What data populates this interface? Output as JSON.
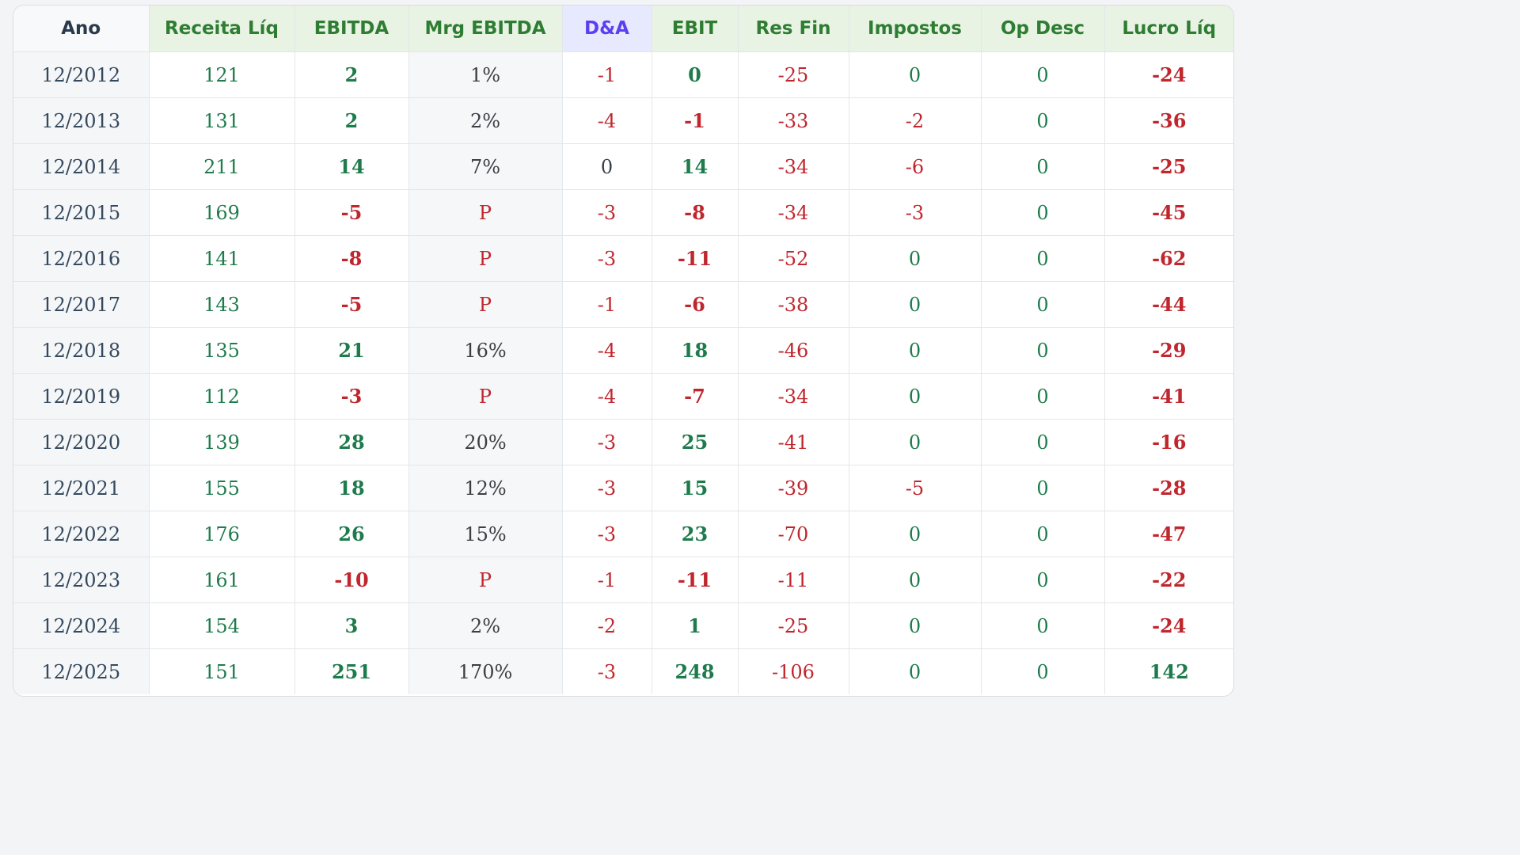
{
  "headers": {
    "ano": "Ano",
    "receita": "Receita Líq",
    "ebitda": "EBITDA",
    "mrg": "Mrg EBITDA",
    "da": "D&A",
    "ebit": "EBIT",
    "resfin": "Res Fin",
    "impostos": "Impostos",
    "opdesc": "Op Desc",
    "lucro": "Lucro Líq"
  },
  "colors": {
    "positive": "#1e7b4c",
    "negative": "#c0262d",
    "header_green": "#2e7d32",
    "header_da": "#5b3ff0"
  },
  "rows": [
    {
      "ano": "12/2012",
      "receita": "121",
      "ebitda": "2",
      "mrg": "1%",
      "da": "-1",
      "ebit": "0",
      "resfin": "-25",
      "impostos": "0",
      "opdesc": "0",
      "lucro": "-24"
    },
    {
      "ano": "12/2013",
      "receita": "131",
      "ebitda": "2",
      "mrg": "2%",
      "da": "-4",
      "ebit": "-1",
      "resfin": "-33",
      "impostos": "-2",
      "opdesc": "0",
      "lucro": "-36"
    },
    {
      "ano": "12/2014",
      "receita": "211",
      "ebitda": "14",
      "mrg": "7%",
      "da": "0",
      "ebit": "14",
      "resfin": "-34",
      "impostos": "-6",
      "opdesc": "0",
      "lucro": "-25"
    },
    {
      "ano": "12/2015",
      "receita": "169",
      "ebitda": "-5",
      "mrg": "P",
      "da": "-3",
      "ebit": "-8",
      "resfin": "-34",
      "impostos": "-3",
      "opdesc": "0",
      "lucro": "-45"
    },
    {
      "ano": "12/2016",
      "receita": "141",
      "ebitda": "-8",
      "mrg": "P",
      "da": "-3",
      "ebit": "-11",
      "resfin": "-52",
      "impostos": "0",
      "opdesc": "0",
      "lucro": "-62"
    },
    {
      "ano": "12/2017",
      "receita": "143",
      "ebitda": "-5",
      "mrg": "P",
      "da": "-1",
      "ebit": "-6",
      "resfin": "-38",
      "impostos": "0",
      "opdesc": "0",
      "lucro": "-44"
    },
    {
      "ano": "12/2018",
      "receita": "135",
      "ebitda": "21",
      "mrg": "16%",
      "da": "-4",
      "ebit": "18",
      "resfin": "-46",
      "impostos": "0",
      "opdesc": "0",
      "lucro": "-29"
    },
    {
      "ano": "12/2019",
      "receita": "112",
      "ebitda": "-3",
      "mrg": "P",
      "da": "-4",
      "ebit": "-7",
      "resfin": "-34",
      "impostos": "0",
      "opdesc": "0",
      "lucro": "-41"
    },
    {
      "ano": "12/2020",
      "receita": "139",
      "ebitda": "28",
      "mrg": "20%",
      "da": "-3",
      "ebit": "25",
      "resfin": "-41",
      "impostos": "0",
      "opdesc": "0",
      "lucro": "-16"
    },
    {
      "ano": "12/2021",
      "receita": "155",
      "ebitda": "18",
      "mrg": "12%",
      "da": "-3",
      "ebit": "15",
      "resfin": "-39",
      "impostos": "-5",
      "opdesc": "0",
      "lucro": "-28"
    },
    {
      "ano": "12/2022",
      "receita": "176",
      "ebitda": "26",
      "mrg": "15%",
      "da": "-3",
      "ebit": "23",
      "resfin": "-70",
      "impostos": "0",
      "opdesc": "0",
      "lucro": "-47"
    },
    {
      "ano": "12/2023",
      "receita": "161",
      "ebitda": "-10",
      "mrg": "P",
      "da": "-1",
      "ebit": "-11",
      "resfin": "-11",
      "impostos": "0",
      "opdesc": "0",
      "lucro": "-22"
    },
    {
      "ano": "12/2024",
      "receita": "154",
      "ebitda": "3",
      "mrg": "2%",
      "da": "-2",
      "ebit": "1",
      "resfin": "-25",
      "impostos": "0",
      "opdesc": "0",
      "lucro": "-24"
    },
    {
      "ano": "12/2025",
      "receita": "151",
      "ebitda": "251",
      "mrg": "170%",
      "da": "-3",
      "ebit": "248",
      "resfin": "-106",
      "impostos": "0",
      "opdesc": "0",
      "lucro": "142"
    }
  ]
}
